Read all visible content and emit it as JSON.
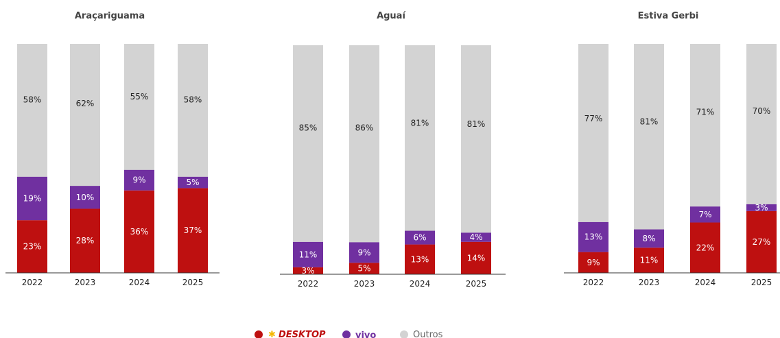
{
  "colors": {
    "desktop": "#BE1010",
    "vivo": "#7030A0",
    "outros": "#D3D3D3",
    "desktop_logo_yellow": "#F5B800"
  },
  "chart_data": [
    {
      "type": "bar",
      "stacked": true,
      "title": "Araçariguama",
      "categories": [
        "2022",
        "2023",
        "2024",
        "2025"
      ],
      "series": [
        {
          "name": "DESKTOP",
          "values": [
            23,
            28,
            36,
            37
          ]
        },
        {
          "name": "vivo",
          "values": [
            19,
            10,
            9,
            5
          ]
        },
        {
          "name": "Outros",
          "values": [
            58,
            62,
            55,
            58
          ]
        }
      ],
      "labels": [
        [
          "23%",
          "28%",
          "36%",
          "37%"
        ],
        [
          "19%",
          "10%",
          "9%",
          "5%"
        ],
        [
          "58%",
          "62%",
          "55%",
          "58%"
        ]
      ]
    },
    {
      "type": "bar",
      "stacked": true,
      "title": "Aguaí",
      "categories": [
        "2022",
        "2023",
        "2024",
        "2025"
      ],
      "series": [
        {
          "name": "DESKTOP",
          "values": [
            3,
            5,
            13,
            14
          ]
        },
        {
          "name": "vivo",
          "values": [
            11,
            9,
            6,
            4
          ]
        },
        {
          "name": "Outros",
          "values": [
            85,
            86,
            81,
            81
          ]
        }
      ],
      "labels": [
        [
          "3%",
          "5%",
          "13%",
          "14%"
        ],
        [
          "11%",
          "9%",
          "6%",
          "4%"
        ],
        [
          "85%",
          "86%",
          "81%",
          "81%"
        ]
      ]
    },
    {
      "type": "bar",
      "stacked": true,
      "title": "Estiva Gerbi",
      "categories": [
        "2022",
        "2023",
        "2024",
        "2025"
      ],
      "series": [
        {
          "name": "DESKTOP",
          "values": [
            9,
            11,
            22,
            27
          ]
        },
        {
          "name": "vivo",
          "values": [
            13,
            8,
            7,
            3
          ]
        },
        {
          "name": "Outros",
          "values": [
            77,
            81,
            71,
            70
          ]
        }
      ],
      "labels": [
        [
          "9%",
          "11%",
          "22%",
          "27%"
        ],
        [
          "13%",
          "8%",
          "7%",
          "3%"
        ],
        [
          "77%",
          "81%",
          "71%",
          "70%"
        ]
      ]
    }
  ],
  "legend": {
    "position": "bottom-center",
    "items": [
      {
        "name": "DESKTOP",
        "text": "DESKTOP",
        "logo": "desktop-logo"
      },
      {
        "name": "vivo",
        "text": "vivo",
        "logo": "vivo-logo"
      },
      {
        "name": "Outros",
        "text": "Outros"
      }
    ]
  }
}
